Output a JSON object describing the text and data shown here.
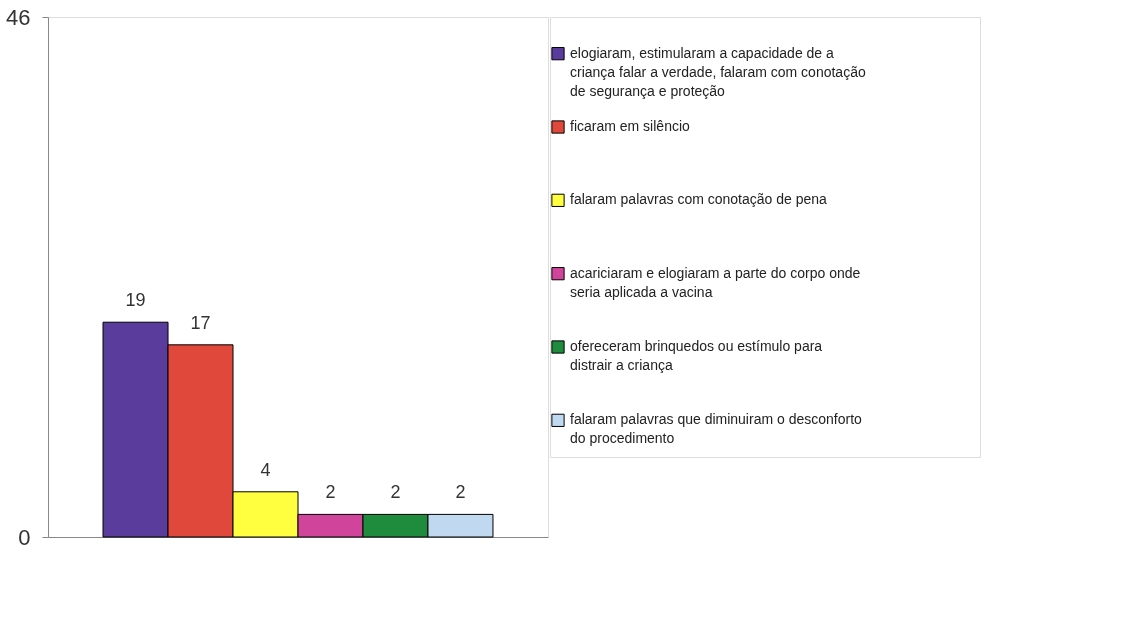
{
  "chart_data": {
    "type": "bar",
    "categories": [
      null
    ],
    "series": [
      {
        "name": "elogiaram, estimularam a capacidade de a criança falar a verdade, falaram com conotação de segurança e proteção",
        "color": "#5a3c9c",
        "values": [
          19
        ]
      },
      {
        "name": "ficaram em silêncio",
        "color": "#e0483c",
        "values": [
          17
        ]
      },
      {
        "name": "falaram palavras com conotação de pena",
        "color": "#ffff40",
        "values": [
          4
        ]
      },
      {
        "name": "acariciaram e elogiaram a parte do corpo onde seria aplicada a vacina",
        "color": "#d0449c",
        "values": [
          2
        ]
      },
      {
        "name": "ofereceram brinquedos ou estímulo para distrair a criança",
        "color": "#1e8c3c",
        "values": [
          2
        ]
      },
      {
        "name": "falaram palavras que diminuiram o desconforto do procedimento",
        "color": "#c0d8f0",
        "values": [
          2
        ]
      }
    ],
    "ylim": [
      0,
      46
    ],
    "yticks": [
      0,
      46
    ],
    "data_labels": true,
    "grid": false,
    "legend": "right",
    "tick_labels": "y"
  }
}
